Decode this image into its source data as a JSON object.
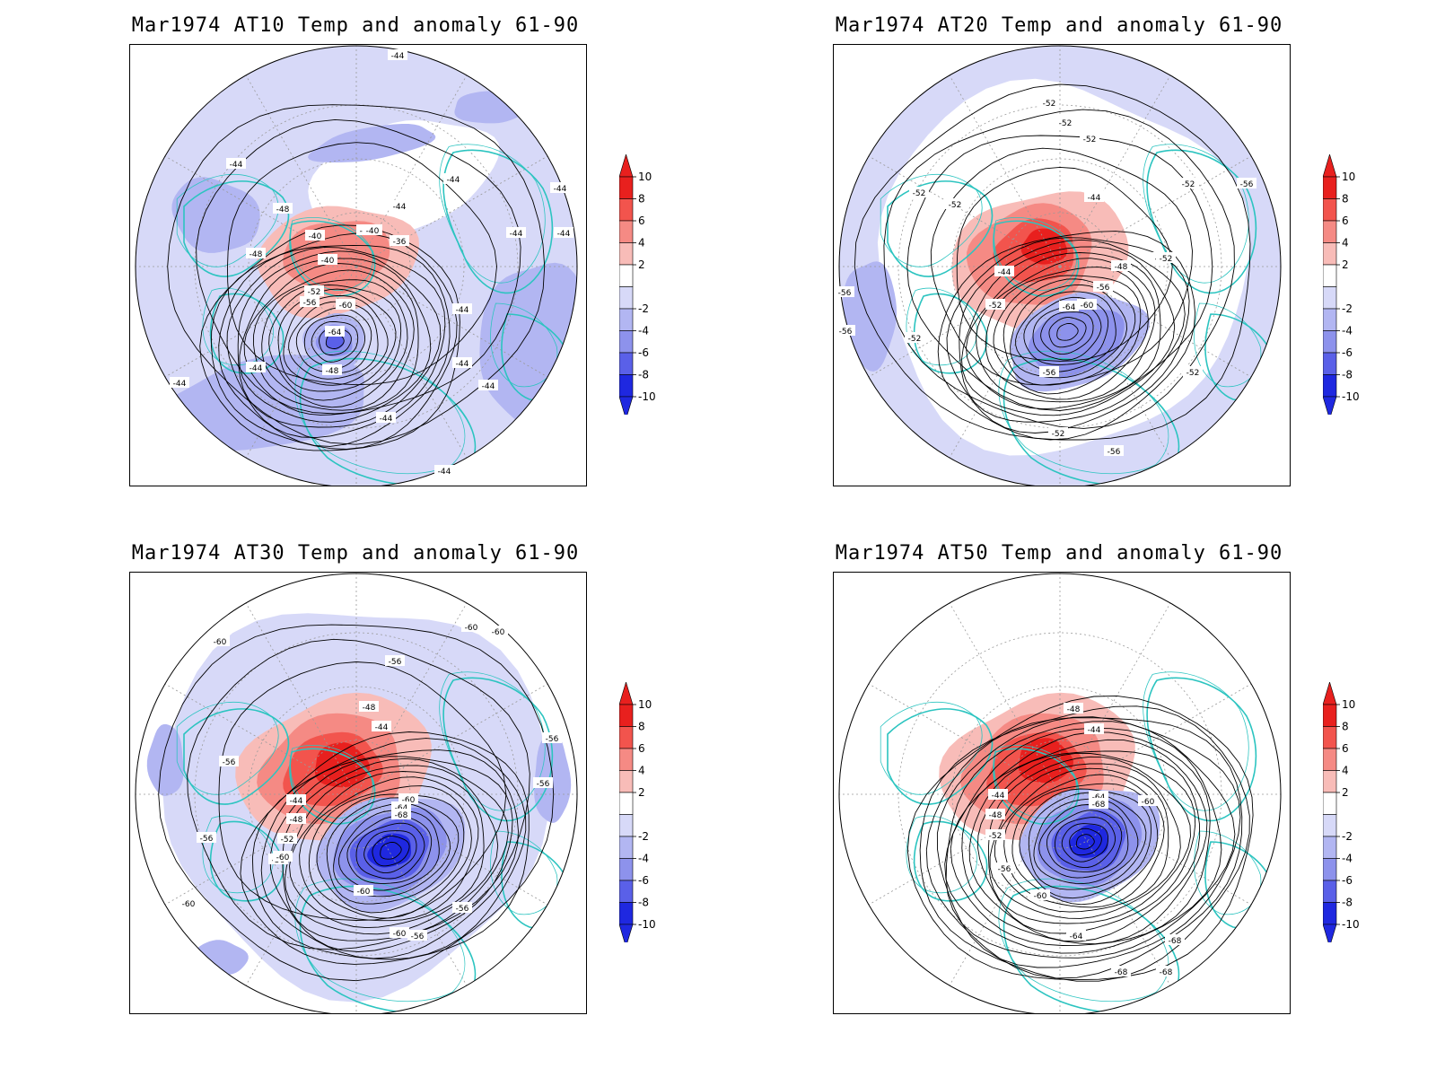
{
  "panels": [
    {
      "title": "Mar1974 AT10 Temp and anomaly 61-90",
      "contour_labels": [
        "-44",
        "-44",
        "-44",
        "-44",
        "-48",
        "-48",
        "-40",
        "-40",
        "-36",
        "-40",
        "-44",
        "-52",
        "-56",
        "-60",
        "-64",
        "-44",
        "-44",
        "-48",
        "-44",
        "-44",
        "-44",
        "-44",
        "-44",
        "-40",
        "-44",
        "-44",
        "-44"
      ]
    },
    {
      "title": "Mar1974 AT20 Temp and anomaly 61-90",
      "contour_labels": [
        "-52",
        "-52",
        "-52",
        "-52",
        "-52",
        "-56",
        "-52",
        "-44",
        "-44",
        "-48",
        "-52",
        "-56",
        "-60",
        "-64",
        "-52",
        "-52",
        "-56",
        "-52",
        "-56",
        "-52",
        "-56",
        "-52",
        "-56"
      ]
    },
    {
      "title": "Mar1974 AT30 Temp and anomaly 61-90",
      "contour_labels": [
        "-60",
        "-60",
        "-60",
        "-56",
        "-48",
        "-44",
        "-56",
        "-56",
        "-44",
        "-48",
        "-52",
        "-56",
        "-60",
        "-64",
        "-68",
        "-56",
        "-60",
        "-60",
        "-56",
        "-56",
        "-60",
        "-60",
        "-56"
      ]
    },
    {
      "title": "Mar1974 AT50 Temp and anomaly 61-90",
      "contour_labels": [
        "-48",
        "-44",
        "-44",
        "-48",
        "-52",
        "-56",
        "-60",
        "-64",
        "-68",
        "-60",
        "-60",
        "-64",
        "-68",
        "-68",
        "-68"
      ]
    }
  ],
  "colorbar": {
    "ticks": [
      "10",
      "8",
      "6",
      "4",
      "2",
      "-2",
      "-4",
      "-6",
      "-8",
      "-10"
    ],
    "colors": [
      "#e8201e",
      "#f2544d",
      "#f58a84",
      "#f8bcb8",
      "#ffffff",
      "#d7d9f8",
      "#b2b6f2",
      "#8d92ec",
      "#5a60e8",
      "#1f28e0"
    ],
    "top_arrow_color": "#e8201e",
    "bottom_arrow_color": "#1f28e0"
  },
  "style": {
    "coastline_color": "#2cc4c0",
    "contour_color": "#000000",
    "grid_color": "#9a9a9a"
  }
}
